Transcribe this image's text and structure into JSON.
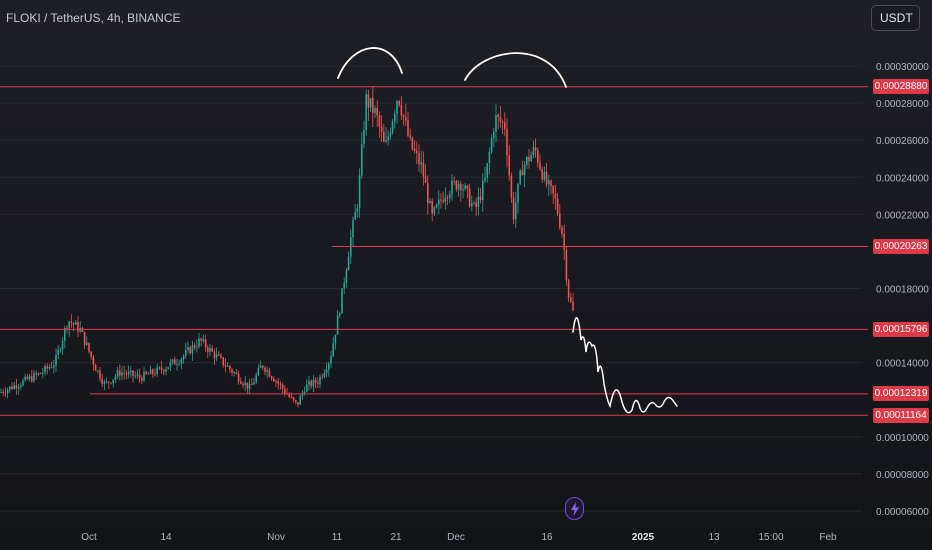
{
  "header": {
    "symbol": "FLOKI / TetherUS, 4h, BINANCE",
    "currency": "USDT"
  },
  "colors": {
    "background": "#15161b",
    "up_candle": "#26a69a",
    "down_candle": "#ef5350",
    "level_line": "#e03a4a",
    "drawing": "#ffffff",
    "badge": "#e03a4a",
    "lightning": "#7b4ad8"
  },
  "price_scale": {
    "labels": [
      "0.00030000",
      "0.00028000",
      "0.00026000",
      "0.00024000",
      "0.00022000",
      "0.00018000",
      "0.00014000",
      "0.00010000",
      "0.00008000",
      "0.00006000"
    ],
    "values": [
      0.0003,
      0.00028,
      0.00026,
      0.00024,
      0.00022,
      0.00018,
      0.00014,
      0.0001,
      8e-05,
      6e-05
    ]
  },
  "time_scale": {
    "labels": [
      "Oct",
      "14",
      "Nov",
      "11",
      "21",
      "Dec",
      "16",
      "2025",
      "13",
      "15:00",
      "Feb"
    ]
  },
  "levels": [
    {
      "value": 0.0002888,
      "label": "0.00028880"
    },
    {
      "value": 0.00020263,
      "label": "0.00020263"
    },
    {
      "value": 0.00015796,
      "label": "0.00015796"
    },
    {
      "value": 0.00012319,
      "label": "0.00012319"
    },
    {
      "value": 0.00011164,
      "label": "0.00011164"
    }
  ],
  "drawings": {
    "annotation": "double top arcs above 0.00028880 and projected decline path toward 0.00012319"
  },
  "lightning_icon": "lightning-icon"
}
